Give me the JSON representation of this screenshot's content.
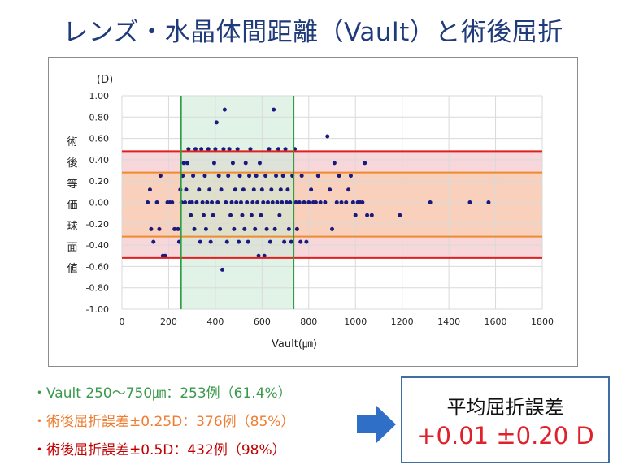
{
  "title": "レンズ・水晶体間距離（Vault）と術後屈折",
  "chart_data": {
    "type": "scatter",
    "xlabel": "Vault(㎛)",
    "ylabel_vertical": [
      "術",
      "後",
      "等",
      "価",
      "球",
      "面",
      "値"
    ],
    "yunit": "(D)",
    "xlim": [
      0,
      1800
    ],
    "ylim": [
      -1.0,
      1.0
    ],
    "xticks": [
      "0",
      "200",
      "400",
      "600",
      "800",
      "1000",
      "1200",
      "1400",
      "1600",
      "1800"
    ],
    "yticks": [
      "1.00",
      "0.80",
      "0.60",
      "0.40",
      "0.20",
      "0.00",
      "-0.20",
      "-0.40",
      "-0.60",
      "-0.80",
      "-1.00"
    ],
    "grid": true,
    "shaded_regions": [
      {
        "axis": "y",
        "range": [
          -0.52,
          0.48
        ],
        "color": "#f6c9cf",
        "line_color": "#e02020"
      },
      {
        "axis": "y",
        "range": [
          -0.32,
          0.28
        ],
        "color": "#f8ceb2",
        "line_color": "#f08a2c"
      },
      {
        "axis": "x",
        "range": [
          253,
          735
        ],
        "color": "#cdebd7",
        "line_color": "#2e9e46"
      }
    ],
    "points": [
      [
        110,
        0
      ],
      [
        120,
        0.12
      ],
      [
        125,
        -0.25
      ],
      [
        135,
        -0.37
      ],
      [
        150,
        0
      ],
      [
        160,
        -0.25
      ],
      [
        165,
        0.25
      ],
      [
        175,
        -0.5
      ],
      [
        185,
        -0.5
      ],
      [
        195,
        0
      ],
      [
        205,
        0
      ],
      [
        215,
        0
      ],
      [
        225,
        -0.25
      ],
      [
        240,
        -0.25
      ],
      [
        245,
        -0.37
      ],
      [
        250,
        0.12
      ],
      [
        255,
        0
      ],
      [
        260,
        0.25
      ],
      [
        265,
        0.37
      ],
      [
        270,
        0
      ],
      [
        275,
        0.12
      ],
      [
        280,
        0.37
      ],
      [
        285,
        0.5
      ],
      [
        290,
        0
      ],
      [
        295,
        -0.12
      ],
      [
        300,
        0
      ],
      [
        305,
        0.25
      ],
      [
        310,
        -0.25
      ],
      [
        315,
        0.5
      ],
      [
        320,
        0
      ],
      [
        330,
        0.12
      ],
      [
        335,
        -0.37
      ],
      [
        340,
        0.5
      ],
      [
        345,
        0
      ],
      [
        350,
        -0.12
      ],
      [
        355,
        0.25
      ],
      [
        360,
        -0.25
      ],
      [
        365,
        0
      ],
      [
        370,
        0.5
      ],
      [
        375,
        0.12
      ],
      [
        380,
        -0.37
      ],
      [
        385,
        0
      ],
      [
        390,
        -0.12
      ],
      [
        395,
        0.37
      ],
      [
        400,
        0.5
      ],
      [
        405,
        0.75
      ],
      [
        410,
        0
      ],
      [
        415,
        0.25
      ],
      [
        420,
        -0.25
      ],
      [
        425,
        0.12
      ],
      [
        430,
        -0.63
      ],
      [
        435,
        0.5
      ],
      [
        440,
        0.87
      ],
      [
        445,
        0
      ],
      [
        450,
        -0.37
      ],
      [
        455,
        0.25
      ],
      [
        460,
        0.5
      ],
      [
        465,
        -0.12
      ],
      [
        470,
        0
      ],
      [
        475,
        0.37
      ],
      [
        480,
        -0.25
      ],
      [
        485,
        0.12
      ],
      [
        490,
        0
      ],
      [
        495,
        0.5
      ],
      [
        500,
        -0.37
      ],
      [
        505,
        0.25
      ],
      [
        510,
        0
      ],
      [
        515,
        -0.12
      ],
      [
        520,
        0.12
      ],
      [
        525,
        -0.25
      ],
      [
        530,
        0.37
      ],
      [
        535,
        0
      ],
      [
        540,
        -0.37
      ],
      [
        545,
        0.25
      ],
      [
        550,
        0.5
      ],
      [
        555,
        -0.12
      ],
      [
        560,
        0
      ],
      [
        565,
        0.12
      ],
      [
        570,
        -0.25
      ],
      [
        575,
        0.25
      ],
      [
        580,
        0
      ],
      [
        585,
        -0.5
      ],
      [
        590,
        0.37
      ],
      [
        595,
        -0.12
      ],
      [
        600,
        0.12
      ],
      [
        605,
        0
      ],
      [
        610,
        -0.5
      ],
      [
        615,
        0.25
      ],
      [
        620,
        -0.25
      ],
      [
        625,
        0
      ],
      [
        630,
        0.5
      ],
      [
        635,
        -0.37
      ],
      [
        640,
        0.12
      ],
      [
        645,
        0
      ],
      [
        650,
        0.87
      ],
      [
        655,
        -0.25
      ],
      [
        660,
        0.25
      ],
      [
        665,
        0
      ],
      [
        670,
        0.5
      ],
      [
        675,
        -0.12
      ],
      [
        680,
        0.12
      ],
      [
        685,
        0
      ],
      [
        690,
        0.25
      ],
      [
        695,
        -0.37
      ],
      [
        700,
        0.5
      ],
      [
        705,
        0
      ],
      [
        710,
        0.12
      ],
      [
        715,
        -0.25
      ],
      [
        720,
        0
      ],
      [
        725,
        -0.37
      ],
      [
        730,
        0.25
      ],
      [
        740,
        0.5
      ],
      [
        745,
        0
      ],
      [
        750,
        -0.25
      ],
      [
        760,
        0
      ],
      [
        765,
        -0.37
      ],
      [
        770,
        0.25
      ],
      [
        780,
        0
      ],
      [
        790,
        -0.37
      ],
      [
        800,
        0
      ],
      [
        810,
        0.12
      ],
      [
        820,
        0
      ],
      [
        830,
        0
      ],
      [
        840,
        0.25
      ],
      [
        850,
        0
      ],
      [
        870,
        0
      ],
      [
        880,
        0.62
      ],
      [
        890,
        0.12
      ],
      [
        900,
        -0.25
      ],
      [
        910,
        0.37
      ],
      [
        920,
        0
      ],
      [
        930,
        0.25
      ],
      [
        940,
        0
      ],
      [
        960,
        0
      ],
      [
        970,
        0.12
      ],
      [
        980,
        0.25
      ],
      [
        990,
        0
      ],
      [
        1000,
        -0.12
      ],
      [
        1010,
        0
      ],
      [
        1020,
        0
      ],
      [
        1030,
        0
      ],
      [
        1040,
        0.37
      ],
      [
        1050,
        -0.12
      ],
      [
        1070,
        -0.12
      ],
      [
        1190,
        -0.12
      ],
      [
        1320,
        0
      ],
      [
        1490,
        0
      ],
      [
        1570,
        0
      ]
    ]
  },
  "stats": [
    "・Vault 250〜750㎛：253例（61.4%）",
    "・術後屈折誤差±0.25D：376例（85%）",
    "・術後屈折誤差±0.5D：432例（98%）"
  ],
  "result": {
    "label": "平均屈折誤差",
    "value": "+0.01 ±0.20 D"
  },
  "colors": {
    "title": "#1f3b7a",
    "point": "#1a1a7e",
    "grid": "#d9d9d9",
    "arrow": "#2f6fc8",
    "box_border": "#3f6ea3"
  }
}
